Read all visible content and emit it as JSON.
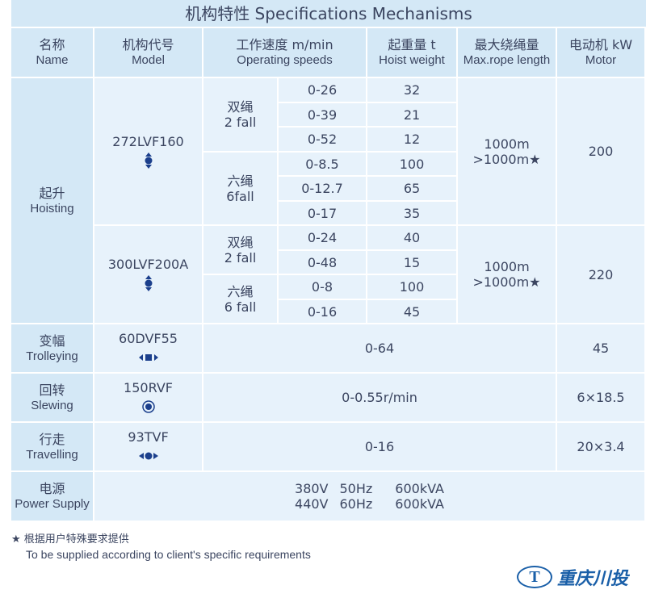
{
  "title": "机构特性 Specifications Mechanisms",
  "header": [
    {
      "zh": "名称",
      "en": "Name"
    },
    {
      "zh": "机构代号",
      "en": "Model"
    },
    {
      "zh": "工作速度 m/min",
      "en": "Operating speeds"
    },
    {
      "zh": "起重量 t",
      "en": "Hoist weight"
    },
    {
      "zh": "最大绕绳量",
      "en": "Max.rope length"
    },
    {
      "zh": "电动机 kW",
      "en": "Motor"
    }
  ],
  "hoisting": {
    "zh": "起升",
    "en": "Hoisting",
    "models": [
      {
        "model": "272LVF160",
        "rope": [
          "1000m",
          ">1000m★"
        ],
        "motor": "200",
        "groups": [
          {
            "zh": "双绳",
            "en": "2 fall",
            "rows": [
              [
                "0-26",
                "32"
              ],
              [
                "0-39",
                "21"
              ],
              [
                "0-52",
                "12"
              ]
            ]
          },
          {
            "zh": "六绳",
            "en": "6fall",
            "rows": [
              [
                "0-8.5",
                "100"
              ],
              [
                "0-12.7",
                "65"
              ],
              [
                "0-17",
                "35"
              ]
            ]
          }
        ]
      },
      {
        "model": "300LVF200A",
        "rope": [
          "1000m",
          ">1000m★"
        ],
        "motor": "220",
        "groups": [
          {
            "zh": "双绳",
            "en": "2 fall",
            "rows": [
              [
                "0-24",
                "40"
              ],
              [
                "0-48",
                "15"
              ]
            ]
          },
          {
            "zh": "六绳",
            "en": "6 fall",
            "rows": [
              [
                "0-8",
                "100"
              ],
              [
                "0-16",
                "45"
              ]
            ]
          }
        ]
      }
    ]
  },
  "mechanisms": [
    {
      "zh": "变幅",
      "en": "Trolleying",
      "model": "60DVF55",
      "speed": "0-64",
      "motor": "45"
    },
    {
      "zh": "回转",
      "en": "Slewing",
      "model": "150RVF",
      "speed": "0-0.55r/min",
      "motor": "6×18.5"
    },
    {
      "zh": "行走",
      "en": "Travelling",
      "model": "93TVF",
      "speed": "0-16",
      "motor": "20×3.4"
    }
  ],
  "power": {
    "zh": "电源",
    "en": "Power Supply",
    "lines": [
      [
        "380V",
        "50Hz",
        "600kVA"
      ],
      [
        "440V",
        "60Hz",
        "600kVA"
      ]
    ]
  },
  "footnote": {
    "zh": "★ 根据用户特殊要求提供",
    "en": "To be supplied according to client's specific requirements"
  },
  "logo": {
    "mark": "T",
    "text": "重庆川投"
  }
}
